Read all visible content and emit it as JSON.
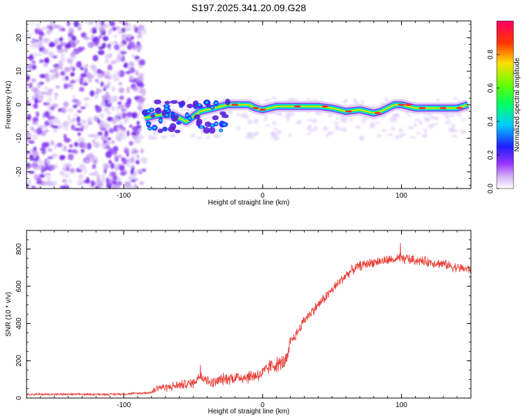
{
  "title": "S197.2025.341.20.09.G28",
  "chart_data": [
    {
      "type": "heatmap",
      "name": "spectrogram",
      "xlabel": "Height of straight line (km)",
      "ylabel": "Frequency (Hz)",
      "xlim": [
        -170,
        150
      ],
      "ylim": [
        -25,
        25
      ],
      "xticks": [
        -100,
        0,
        100
      ],
      "yticks": [
        -20,
        -10,
        0,
        10,
        20
      ],
      "noise_region_x": [
        -170,
        -85
      ],
      "signal_track": {
        "x": [
          -85,
          -75,
          -65,
          -55,
          -45,
          -35,
          -25,
          -20,
          -10,
          -5,
          0,
          10,
          20,
          30,
          40,
          50,
          60,
          70,
          80,
          85,
          90,
          95,
          100,
          110,
          120,
          130,
          140,
          148
        ],
        "freq": [
          -4,
          -3,
          -3,
          -5,
          -2,
          -1,
          0,
          0,
          0,
          -1,
          -1.5,
          -0.5,
          -0.5,
          -0.5,
          -0.5,
          -1,
          -2,
          -1.5,
          -2.5,
          -2,
          -1,
          0,
          0,
          -1,
          -1,
          -1,
          -1,
          0
        ]
      }
    },
    {
      "type": "colorbar",
      "name": "amplitude-scale",
      "label": "Normalized spectral amplitude",
      "range": [
        0,
        1
      ],
      "ticks": [
        "0.0",
        "0.2",
        "0.4",
        "0.6",
        "0.8"
      ]
    },
    {
      "type": "line",
      "name": "snr",
      "xlabel": "Height of straight line (km)",
      "ylabel": "SNR (10 * v/v)",
      "xlim": [
        -170,
        150
      ],
      "ylim": [
        0,
        900
      ],
      "xticks": [
        -100,
        0,
        100
      ],
      "yticks": [
        0,
        200,
        400,
        600,
        800
      ],
      "color": "#e8413a",
      "series": [
        {
          "name": "SNR",
          "x": [
            -170,
            -150,
            -130,
            -110,
            -100,
            -90,
            -80,
            -75,
            -70,
            -60,
            -50,
            -45,
            -40,
            -35,
            -30,
            -20,
            -10,
            0,
            5,
            10,
            15,
            18,
            20,
            25,
            30,
            35,
            40,
            45,
            50,
            55,
            60,
            65,
            70,
            80,
            90,
            95,
            100,
            105,
            110,
            120,
            130,
            140,
            150
          ],
          "y": [
            20,
            20,
            20,
            20,
            22,
            25,
            30,
            60,
            55,
            70,
            80,
            120,
            90,
            80,
            100,
            110,
            115,
            130,
            170,
            180,
            190,
            210,
            300,
            350,
            420,
            460,
            500,
            540,
            580,
            620,
            660,
            690,
            710,
            730,
            740,
            745,
            750,
            745,
            740,
            730,
            720,
            700,
            690
          ]
        }
      ]
    }
  ]
}
